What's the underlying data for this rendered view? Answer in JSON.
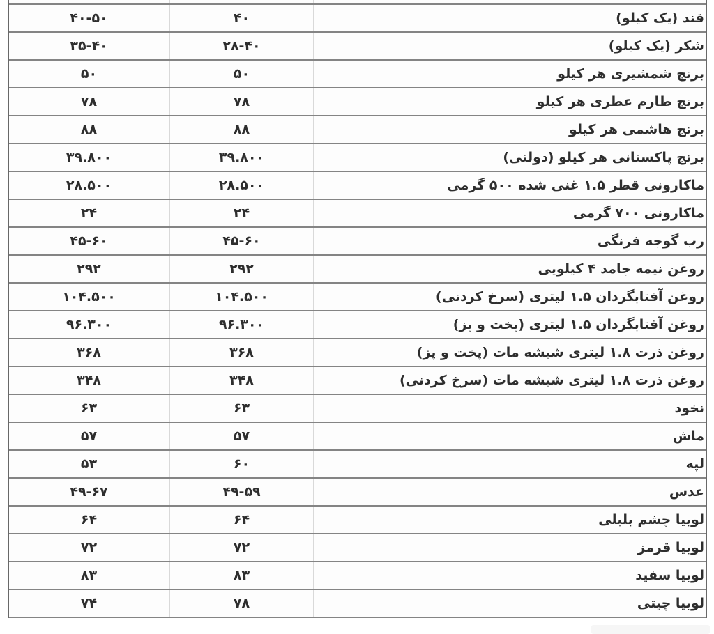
{
  "table": {
    "rows": [
      {
        "name": "قند (یک کیلو)",
        "price_mid": "۴۰",
        "price_left": "۴۰-۵۰"
      },
      {
        "name": "شکر (یک کیلو)",
        "price_mid": "۲۸-۴۰",
        "price_left": "۳۵-۴۰"
      },
      {
        "name": "برنج شمشیری هر کیلو",
        "price_mid": "۵۰",
        "price_left": "۵۰"
      },
      {
        "name": "برنج طارم عطری هر کیلو",
        "price_mid": "۷۸",
        "price_left": "۷۸"
      },
      {
        "name": "برنج هاشمی هر کیلو",
        "price_mid": "۸۸",
        "price_left": "۸۸"
      },
      {
        "name": "برنج پاکستانی هر کیلو (دولتی)",
        "price_mid": "۳۹.۸۰۰",
        "price_left": "۳۹.۸۰۰"
      },
      {
        "name": "ماکارونی قطر ۱.۵ غنی شده ۵۰۰ گرمی",
        "price_mid": "۲۸.۵۰۰",
        "price_left": "۲۸.۵۰۰"
      },
      {
        "name": "ماکارونی ۷۰۰ گرمی",
        "price_mid": "۲۴",
        "price_left": "۲۴"
      },
      {
        "name": "رب گوجه فرنگی",
        "price_mid": "۴۵-۶۰",
        "price_left": "۴۵-۶۰"
      },
      {
        "name": "روغن نیمه جامد ۴ کیلویی",
        "price_mid": "۲۹۲",
        "price_left": "۲۹۲"
      },
      {
        "name": "روغن آفتابگردان ۱.۵ لیتری (سرخ کردنی)",
        "price_mid": "۱۰۴.۵۰۰",
        "price_left": "۱۰۴.۵۰۰"
      },
      {
        "name": "روغن آفتابگردان ۱.۵ لیتری (پخت و پز)",
        "price_mid": "۹۶.۳۰۰",
        "price_left": "۹۶.۳۰۰"
      },
      {
        "name": "روغن ذرت ۱.۸ لیتری شیشه مات (پخت و پز)",
        "price_mid": "۳۶۸",
        "price_left": "۳۶۸"
      },
      {
        "name": "روغن ذرت ۱.۸ لیتری شیشه مات (سرخ کردنی)",
        "price_mid": "۳۴۸",
        "price_left": "۳۴۸"
      },
      {
        "name": "نخود",
        "price_mid": "۶۳",
        "price_left": "۶۳"
      },
      {
        "name": "ماش",
        "price_mid": "۵۷",
        "price_left": "۵۷"
      },
      {
        "name": "لپه",
        "price_mid": "۶۰",
        "price_left": "۵۳"
      },
      {
        "name": "عدس",
        "price_mid": "۴۹-۵۹",
        "price_left": "۴۹-۶۷"
      },
      {
        "name": "لوبیا چشم بلبلی",
        "price_mid": "۶۴",
        "price_left": "۶۴"
      },
      {
        "name": "لوبیا قرمز",
        "price_mid": "۷۲",
        "price_left": "۷۲"
      },
      {
        "name": "لوبیا سفید",
        "price_mid": "۸۳",
        "price_left": "۸۳"
      },
      {
        "name": "لوبیا چیتی",
        "price_mid": "۷۸",
        "price_left": "۷۴"
      }
    ],
    "colors": {
      "row_border": "#848484",
      "column_border": "#d9d9d9",
      "outer_border": "#686868",
      "text": "#2e2e2e",
      "background": "#ffffff"
    }
  }
}
